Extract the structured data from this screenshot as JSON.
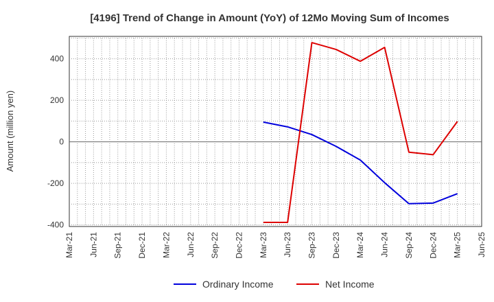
{
  "chart_data": {
    "type": "line",
    "title": "[4196]  Trend of Change in Amount (YoY) of 12Mo Moving Sum of Incomes",
    "xlabel": "",
    "ylabel": "Amount (million yen)",
    "ylim": [
      -400,
      500
    ],
    "yticks": [
      -400,
      -200,
      0,
      200,
      400
    ],
    "categories": [
      "Mar-21",
      "Jun-21",
      "Sep-21",
      "Dec-21",
      "Mar-22",
      "Jun-22",
      "Sep-22",
      "Dec-22",
      "Mar-23",
      "Jun-23",
      "Sep-23",
      "Dec-23",
      "Mar-24",
      "Jun-24",
      "Sep-24",
      "Dec-24",
      "Mar-25",
      "Jun-25"
    ],
    "grid": true,
    "legend_position": "bottom",
    "series": [
      {
        "name": "Ordinary Income",
        "color": "#0000dd",
        "values": [
          null,
          null,
          null,
          null,
          null,
          null,
          null,
          null,
          95,
          72,
          35,
          -22,
          -88,
          -197,
          -298,
          -295,
          -250,
          null
        ]
      },
      {
        "name": "Net Income",
        "color": "#dd0000",
        "values": [
          null,
          null,
          null,
          null,
          null,
          null,
          null,
          null,
          -388,
          -388,
          478,
          445,
          388,
          455,
          -50,
          -62,
          98,
          null
        ]
      }
    ]
  }
}
